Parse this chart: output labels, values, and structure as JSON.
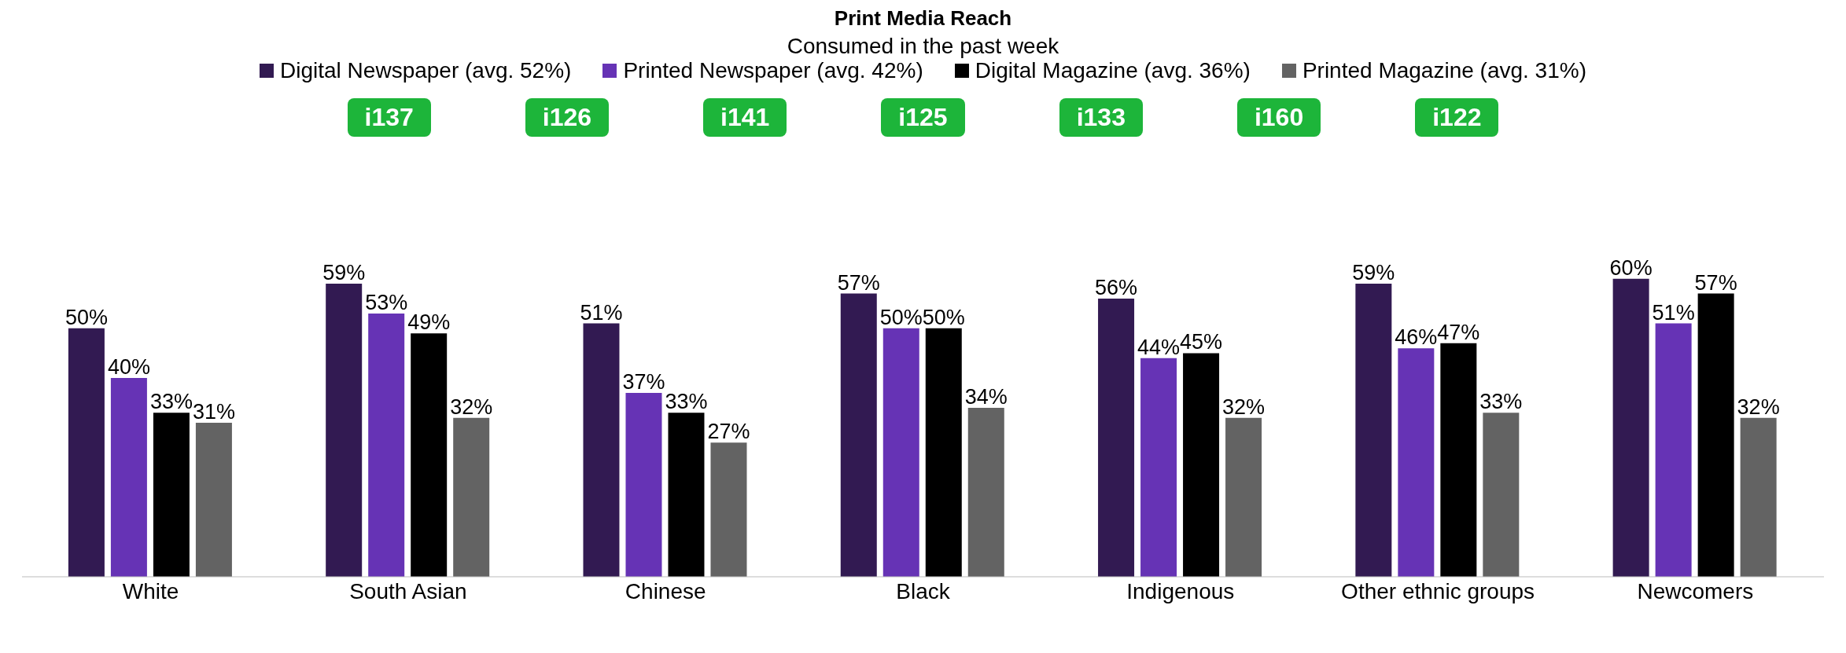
{
  "chart_data": {
    "type": "bar",
    "title": "Print Media Reach",
    "subtitle": "Consumed in the past week",
    "categories": [
      "White",
      "South Asian",
      "Chinese",
      "Black",
      "Indigenous",
      "Other ethnic groups",
      "Newcomers"
    ],
    "series": [
      {
        "name": "Digital Newspaper (avg. 52%)",
        "color": "#321a52",
        "values": [
          50,
          59,
          51,
          57,
          56,
          59,
          60
        ],
        "value_labels": [
          "50%",
          "59%",
          "51%",
          "57%",
          "56%",
          "59%",
          "60%"
        ]
      },
      {
        "name": "Printed Newspaper (avg. 42%)",
        "color": "#6633b5",
        "values": [
          40,
          53,
          37,
          50,
          44,
          46,
          51
        ],
        "value_labels": [
          "40%",
          "53%",
          "37%",
          "50%",
          "44%",
          "46%",
          "51%"
        ]
      },
      {
        "name": "Digital Magazine (avg. 36%)",
        "color": "#000000",
        "values": [
          33,
          49,
          33,
          50,
          45,
          47,
          57
        ],
        "value_labels": [
          "33%",
          "49%",
          "33%",
          "50%",
          "45%",
          "47%",
          "57%"
        ]
      },
      {
        "name": "Printed Magazine (avg. 31%)",
        "color": "#636363",
        "values": [
          31,
          32,
          27,
          34,
          32,
          33,
          32
        ],
        "value_labels": [
          "31%",
          "32%",
          "27%",
          "34%",
          "32%",
          "33%",
          "32%"
        ]
      }
    ],
    "annotations": [
      "i137",
      "i126",
      "i141",
      "i125",
      "i133",
      "i160",
      "i122"
    ],
    "legend": "top"
  }
}
